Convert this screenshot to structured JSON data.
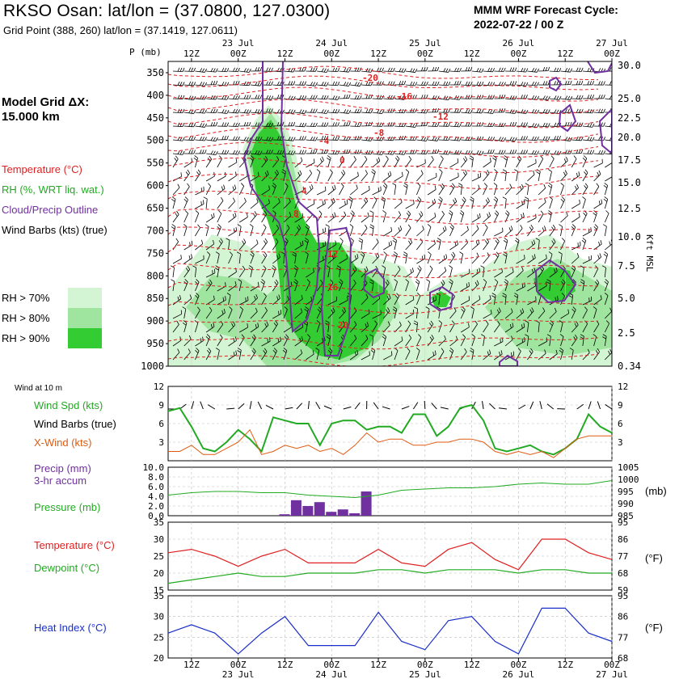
{
  "header": {
    "title": "RKSO Osan:  lat/lon = (37.0800, 127.0300)",
    "subtitle": "Grid Point (388, 260) lat/lon = (37.1419, 127.0611)",
    "cycle_line1": "MMM WRF Forecast Cycle:",
    "cycle_line2": "2022-07-22 / 00  Z"
  },
  "colors": {
    "temperature": "#e02020",
    "rh": "#22aa22",
    "cloud": "#7030a0",
    "xwind": "#e05a10",
    "heat_index": "#1a2fc8",
    "rh70": "#d3f5d3",
    "rh80": "#9fe49f",
    "rh90": "#33cc33"
  },
  "sidebar": {
    "model_grid": "Model Grid ΔX:",
    "model_grid_value": " 15.000 km",
    "temperature": "Temperature (°C)",
    "rh": "RH (%, WRT liq. wat.)",
    "cloud": "Cloud/Precip Outline",
    "wind_barbs": "Wind Barbs (kts) (true)",
    "rh70": "RH > 70%",
    "rh80": "RH > 80%",
    "rh90": "RH > 90%"
  },
  "time_axis": {
    "ticks": [
      "12Z",
      "00Z",
      "12Z",
      "00Z",
      "12Z",
      "00Z",
      "12Z",
      "00Z",
      "12Z",
      "00Z"
    ],
    "days": [
      "23 Jul",
      "24 Jul",
      "25 Jul",
      "26 Jul",
      "27 Jul"
    ]
  },
  "cross_section": {
    "p_label": "P (mb)",
    "kft_label": "Kft MSL",
    "pressure_levels": [
      "350",
      "400",
      "450",
      "500",
      "550",
      "600",
      "650",
      "700",
      "750",
      "800",
      "850",
      "900",
      "950",
      "1000"
    ],
    "height_levels": [
      "30.0",
      "25.0",
      "22.5",
      "20.0",
      "17.5",
      "15.0",
      "12.5",
      "10.0",
      "7.5",
      "5.0",
      "2.5",
      "0.34"
    ],
    "temp_labels": [
      "-20",
      "-16",
      "-12",
      "-8",
      "-4",
      "0",
      "4",
      "8",
      "12",
      "16",
      "20"
    ]
  },
  "panels": {
    "wind": {
      "header": "Wind at 10 m",
      "spd": "Wind Spd (kts)",
      "barbs": "Wind Barbs (true)",
      "xwind": "X-Wind (kts)",
      "ticks_left": [
        "12",
        "9",
        "6",
        "3"
      ],
      "ticks_right": [
        "12",
        "9",
        "6",
        "3"
      ]
    },
    "precip": {
      "precip": "Precip (mm)",
      "accum": "3-hr accum",
      "pressure": "Pressure (mb)",
      "ticks_left": [
        "10.0",
        "8.0",
        "6.0",
        "4.0",
        "2.0",
        "0.0"
      ],
      "ticks_right": [
        "1005",
        "1000",
        "995",
        "990",
        "985"
      ],
      "unit": "(mb)"
    },
    "temp": {
      "temperature": "Temperature (°C)",
      "dewpoint": "Dewpoint (°C)",
      "ticks_left": [
        "35",
        "30",
        "25",
        "20",
        "15"
      ],
      "ticks_right": [
        "95",
        "86",
        "77",
        "68",
        "59"
      ],
      "unit": "(°F)"
    },
    "heat": {
      "heat_index": "Heat Index (°C)",
      "ticks_left": [
        "35",
        "30",
        "25",
        "20"
      ],
      "ticks_right": [
        "95",
        "86",
        "77",
        "68"
      ],
      "unit": "(°F)"
    }
  },
  "chart_data": [
    {
      "type": "line",
      "name": "10 m wind",
      "x": [
        "22/06Z",
        "22/09Z",
        "22/12Z",
        "22/15Z",
        "22/18Z",
        "22/21Z",
        "23/00Z",
        "23/03Z",
        "23/06Z",
        "23/09Z",
        "23/12Z",
        "23/15Z",
        "23/18Z",
        "23/21Z",
        "24/00Z",
        "24/03Z",
        "24/06Z",
        "24/09Z",
        "24/12Z",
        "24/15Z",
        "24/18Z",
        "24/21Z",
        "25/00Z",
        "25/03Z",
        "25/06Z",
        "25/09Z",
        "25/12Z",
        "25/15Z",
        "25/18Z",
        "25/21Z",
        "26/00Z",
        "26/03Z",
        "26/06Z",
        "26/09Z",
        "26/12Z",
        "26/15Z",
        "26/18Z",
        "26/21Z",
        "27/00Z"
      ],
      "series": [
        {
          "name": "Wind Spd (kts)",
          "values": [
            8,
            8.5,
            5.5,
            2,
            1.5,
            3,
            5,
            3.5,
            1.5,
            7,
            6.5,
            6,
            6,
            2.5,
            6,
            6.5,
            6.5,
            5,
            5.5,
            5.5,
            4.5,
            7.5,
            7.5,
            4,
            5.5,
            8.5,
            9,
            6.5,
            2,
            1.5,
            2,
            2.5,
            1.5,
            1,
            2,
            3.5,
            7.5,
            5.5,
            4.5
          ]
        },
        {
          "name": "X-Wind (kts)",
          "values": [
            1.5,
            1.5,
            2.5,
            1,
            1,
            2,
            3,
            5,
            1,
            1.5,
            2.5,
            2,
            2.5,
            1.5,
            2,
            1,
            2.5,
            4.5,
            3,
            3.5,
            3.5,
            2.5,
            2.5,
            3,
            3,
            3.5,
            3.5,
            3,
            1.5,
            1,
            1.5,
            1,
            1.5,
            0.5,
            2,
            3.5,
            4,
            4,
            4
          ]
        }
      ],
      "ylim": [
        0,
        12
      ]
    },
    {
      "type": "bar",
      "name": "Precip (mm) 3-hr accum",
      "x": [
        "23/12Z",
        "23/15Z",
        "23/18Z",
        "23/21Z",
        "24/00Z",
        "24/03Z",
        "24/06Z",
        "24/09Z"
      ],
      "values": [
        0.3,
        3.2,
        2.0,
        2.8,
        0.8,
        1.3,
        0.5,
        5.0
      ],
      "ylim": [
        0,
        10
      ]
    },
    {
      "type": "line",
      "name": "Pressure (mb)",
      "x": [
        "22/06Z",
        "22/12Z",
        "22/18Z",
        "23/00Z",
        "23/06Z",
        "23/12Z",
        "23/18Z",
        "24/00Z",
        "24/06Z",
        "24/12Z",
        "24/18Z",
        "25/00Z",
        "25/06Z",
        "25/12Z",
        "25/18Z",
        "26/00Z",
        "26/06Z",
        "26/12Z",
        "26/18Z",
        "27/00Z"
      ],
      "values": [
        993.5,
        994.5,
        995,
        995,
        994.5,
        994.5,
        993.5,
        993,
        992.5,
        993.5,
        995.5,
        996,
        996.5,
        996.5,
        997,
        998,
        998.5,
        998,
        998,
        999.5
      ],
      "ylim": [
        985,
        1005
      ]
    },
    {
      "type": "line",
      "name": "Temperature / Dewpoint",
      "x": [
        "22/06Z",
        "22/12Z",
        "22/18Z",
        "23/00Z",
        "23/06Z",
        "23/12Z",
        "23/18Z",
        "24/00Z",
        "24/06Z",
        "24/12Z",
        "24/18Z",
        "25/00Z",
        "25/06Z",
        "25/12Z",
        "25/18Z",
        "26/00Z",
        "26/06Z",
        "26/12Z",
        "26/18Z",
        "27/00Z"
      ],
      "series": [
        {
          "name": "Temperature (°C)",
          "values": [
            26,
            27,
            25,
            22,
            25,
            27,
            23,
            23,
            23,
            27,
            23,
            22,
            27,
            29,
            24,
            21,
            30,
            30,
            26,
            24
          ]
        },
        {
          "name": "Dewpoint (°C)",
          "values": [
            17,
            18,
            19,
            20,
            19,
            19,
            20,
            20,
            20,
            21,
            21,
            20,
            21,
            21,
            21,
            20,
            21,
            21,
            20,
            20
          ]
        }
      ],
      "ylim": [
        15,
        35
      ]
    },
    {
      "type": "line",
      "name": "Heat Index (°C)",
      "x": [
        "22/06Z",
        "22/12Z",
        "22/18Z",
        "23/00Z",
        "23/06Z",
        "23/12Z",
        "23/18Z",
        "24/00Z",
        "24/06Z",
        "24/12Z",
        "24/18Z",
        "25/00Z",
        "25/06Z",
        "25/12Z",
        "25/18Z",
        "26/00Z",
        "26/06Z",
        "26/12Z",
        "26/18Z",
        "27/00Z"
      ],
      "values": [
        26,
        28,
        26,
        21,
        26,
        30,
        23,
        23,
        23,
        31,
        24,
        22,
        29,
        30,
        24,
        21,
        32,
        32,
        26,
        24
      ],
      "ylim": [
        20,
        35
      ]
    }
  ]
}
